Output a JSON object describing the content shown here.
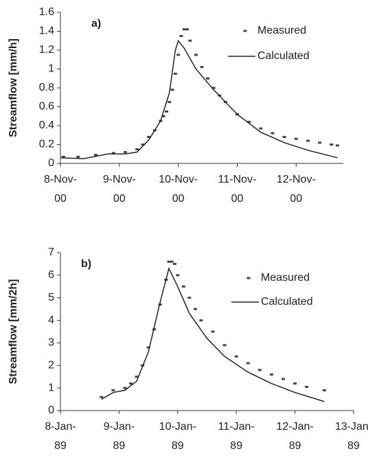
{
  "chart_data": [
    {
      "type": "line",
      "label": "a)",
      "ylabel": "Streamflow [mm/h]",
      "xlim": [
        0,
        4.8
      ],
      "ylim": [
        0,
        1.6
      ],
      "xticks": [
        {
          "value": 0,
          "label": "8-Nov-00"
        },
        {
          "value": 1,
          "label": "9-Nov-00"
        },
        {
          "value": 2,
          "label": "10-Nov-00"
        },
        {
          "value": 3,
          "label": "11-Nov-00"
        },
        {
          "value": 4,
          "label": "12-Nov-00"
        }
      ],
      "yticks": [
        0,
        0.2,
        0.4,
        0.6,
        0.8,
        1,
        1.2,
        1.4,
        1.6
      ],
      "series": [
        {
          "name": "Measured",
          "style": "marker",
          "color": "#444",
          "x": [
            0.05,
            0.3,
            0.6,
            0.9,
            1.1,
            1.3,
            1.4,
            1.5,
            1.6,
            1.7,
            1.75,
            1.8,
            1.85,
            1.9,
            1.95,
            2.0,
            2.05,
            2.1,
            2.15,
            2.2,
            2.3,
            2.4,
            2.5,
            2.6,
            2.7,
            2.8,
            3.0,
            3.2,
            3.4,
            3.6,
            3.8,
            4.0,
            4.2,
            4.4,
            4.6,
            4.7
          ],
          "values": [
            0.07,
            0.07,
            0.09,
            0.11,
            0.12,
            0.15,
            0.2,
            0.28,
            0.35,
            0.45,
            0.5,
            0.55,
            0.65,
            0.78,
            0.95,
            1.15,
            1.35,
            1.42,
            1.42,
            1.3,
            1.15,
            1.02,
            0.9,
            0.8,
            0.72,
            0.65,
            0.52,
            0.44,
            0.37,
            0.32,
            0.28,
            0.26,
            0.24,
            0.22,
            0.2,
            0.19
          ]
        },
        {
          "name": "Calculated",
          "style": "line",
          "color": "#222",
          "x": [
            0,
            0.4,
            0.8,
            1.1,
            1.3,
            1.5,
            1.7,
            1.85,
            1.95,
            2.0,
            2.1,
            2.3,
            2.6,
            3.0,
            3.4,
            3.8,
            4.2,
            4.7
          ],
          "values": [
            0.06,
            0.05,
            0.1,
            0.1,
            0.12,
            0.25,
            0.45,
            0.75,
            1.2,
            1.3,
            1.22,
            1.0,
            0.78,
            0.52,
            0.33,
            0.22,
            0.14,
            0.06
          ]
        }
      ]
    },
    {
      "type": "line",
      "label": "b)",
      "ylabel": "Streamflow [mm/2h]",
      "xlim": [
        0,
        5
      ],
      "ylim": [
        0,
        7
      ],
      "xticks": [
        {
          "value": 0,
          "label": "8-Jan-89"
        },
        {
          "value": 1,
          "label": "9-Jan-89"
        },
        {
          "value": 2,
          "label": "10-Jan-89"
        },
        {
          "value": 3,
          "label": "11-Jan-89"
        },
        {
          "value": 4,
          "label": "12-Jan-89"
        },
        {
          "value": 5,
          "label": "13-Jan-89"
        }
      ],
      "yticks": [
        0,
        1,
        2,
        3,
        4,
        5,
        6,
        7
      ],
      "series": [
        {
          "name": "Measured",
          "style": "marker",
          "color": "#444",
          "x": [
            0.7,
            0.9,
            1.1,
            1.2,
            1.3,
            1.4,
            1.5,
            1.6,
            1.7,
            1.8,
            1.85,
            1.9,
            1.95,
            2.0,
            2.1,
            2.2,
            2.3,
            2.4,
            2.6,
            2.8,
            3.0,
            3.2,
            3.4,
            3.6,
            3.8,
            4.0,
            4.2,
            4.5
          ],
          "values": [
            0.6,
            0.9,
            1.0,
            1.2,
            1.5,
            2.0,
            2.8,
            3.6,
            4.7,
            5.8,
            6.6,
            6.6,
            6.5,
            6.0,
            5.5,
            5.0,
            4.5,
            4.0,
            3.5,
            2.9,
            2.4,
            2.1,
            1.8,
            1.6,
            1.4,
            1.2,
            1.05,
            0.9
          ]
        },
        {
          "name": "Calculated",
          "style": "line",
          "color": "#222",
          "x": [
            0.7,
            0.9,
            1.1,
            1.3,
            1.5,
            1.7,
            1.85,
            2.0,
            2.2,
            2.5,
            2.8,
            3.2,
            3.6,
            4.0,
            4.5
          ],
          "values": [
            0.5,
            0.8,
            0.9,
            1.3,
            2.6,
            4.8,
            6.3,
            5.5,
            4.3,
            3.2,
            2.4,
            1.7,
            1.2,
            0.8,
            0.4
          ]
        }
      ]
    }
  ]
}
